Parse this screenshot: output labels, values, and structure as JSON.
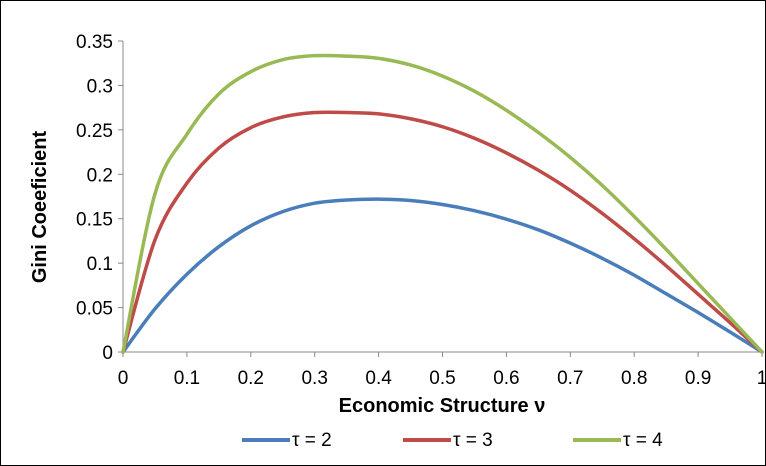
{
  "chart_data": {
    "type": "line",
    "title": "",
    "xlabel": "Economic Structure ν",
    "ylabel": "Gini Coeeficient",
    "xlim": [
      0,
      1
    ],
    "ylim": [
      0,
      0.35
    ],
    "xticks": [
      "0",
      "0.1",
      "0.2",
      "0.3",
      "0.4",
      "0.5",
      "0.6",
      "0.7",
      "0.8",
      "0.9",
      "1"
    ],
    "yticks": [
      "0",
      "0.05",
      "0.1",
      "0.15",
      "0.2",
      "0.25",
      "0.3",
      "0.35"
    ],
    "grid": false,
    "legend_position": "bottom",
    "x": [
      0,
      0.05,
      0.1,
      0.15,
      0.2,
      0.25,
      0.3,
      0.35,
      0.4,
      0.45,
      0.5,
      0.55,
      0.6,
      0.65,
      0.7,
      0.75,
      0.8,
      0.85,
      0.9,
      0.95,
      1
    ],
    "series": [
      {
        "name": "τ = 2",
        "color": "#4a7ebb",
        "values": [
          0,
          0.0485,
          0.0875,
          0.1185,
          0.142,
          0.158,
          0.1675,
          0.171,
          0.172,
          0.1705,
          0.166,
          0.159,
          0.1495,
          0.1375,
          0.1225,
          0.1055,
          0.0865,
          0.0655,
          0.0445,
          0.0225,
          0
        ]
      },
      {
        "name": "τ = 3",
        "color": "#be4b48",
        "values": [
          0,
          0.126,
          0.19,
          0.2295,
          0.2525,
          0.2645,
          0.2695,
          0.2695,
          0.268,
          0.2625,
          0.2535,
          0.2405,
          0.224,
          0.2045,
          0.182,
          0.156,
          0.1275,
          0.097,
          0.065,
          0.033,
          0
        ]
      },
      {
        "name": "τ = 4",
        "color": "#98b954",
        "values": [
          0,
          0.178,
          0.245,
          0.2905,
          0.3155,
          0.329,
          0.3335,
          0.333,
          0.3305,
          0.323,
          0.3105,
          0.2935,
          0.272,
          0.247,
          0.219,
          0.1875,
          0.1525,
          0.1155,
          0.077,
          0.0385,
          0
        ]
      }
    ]
  }
}
